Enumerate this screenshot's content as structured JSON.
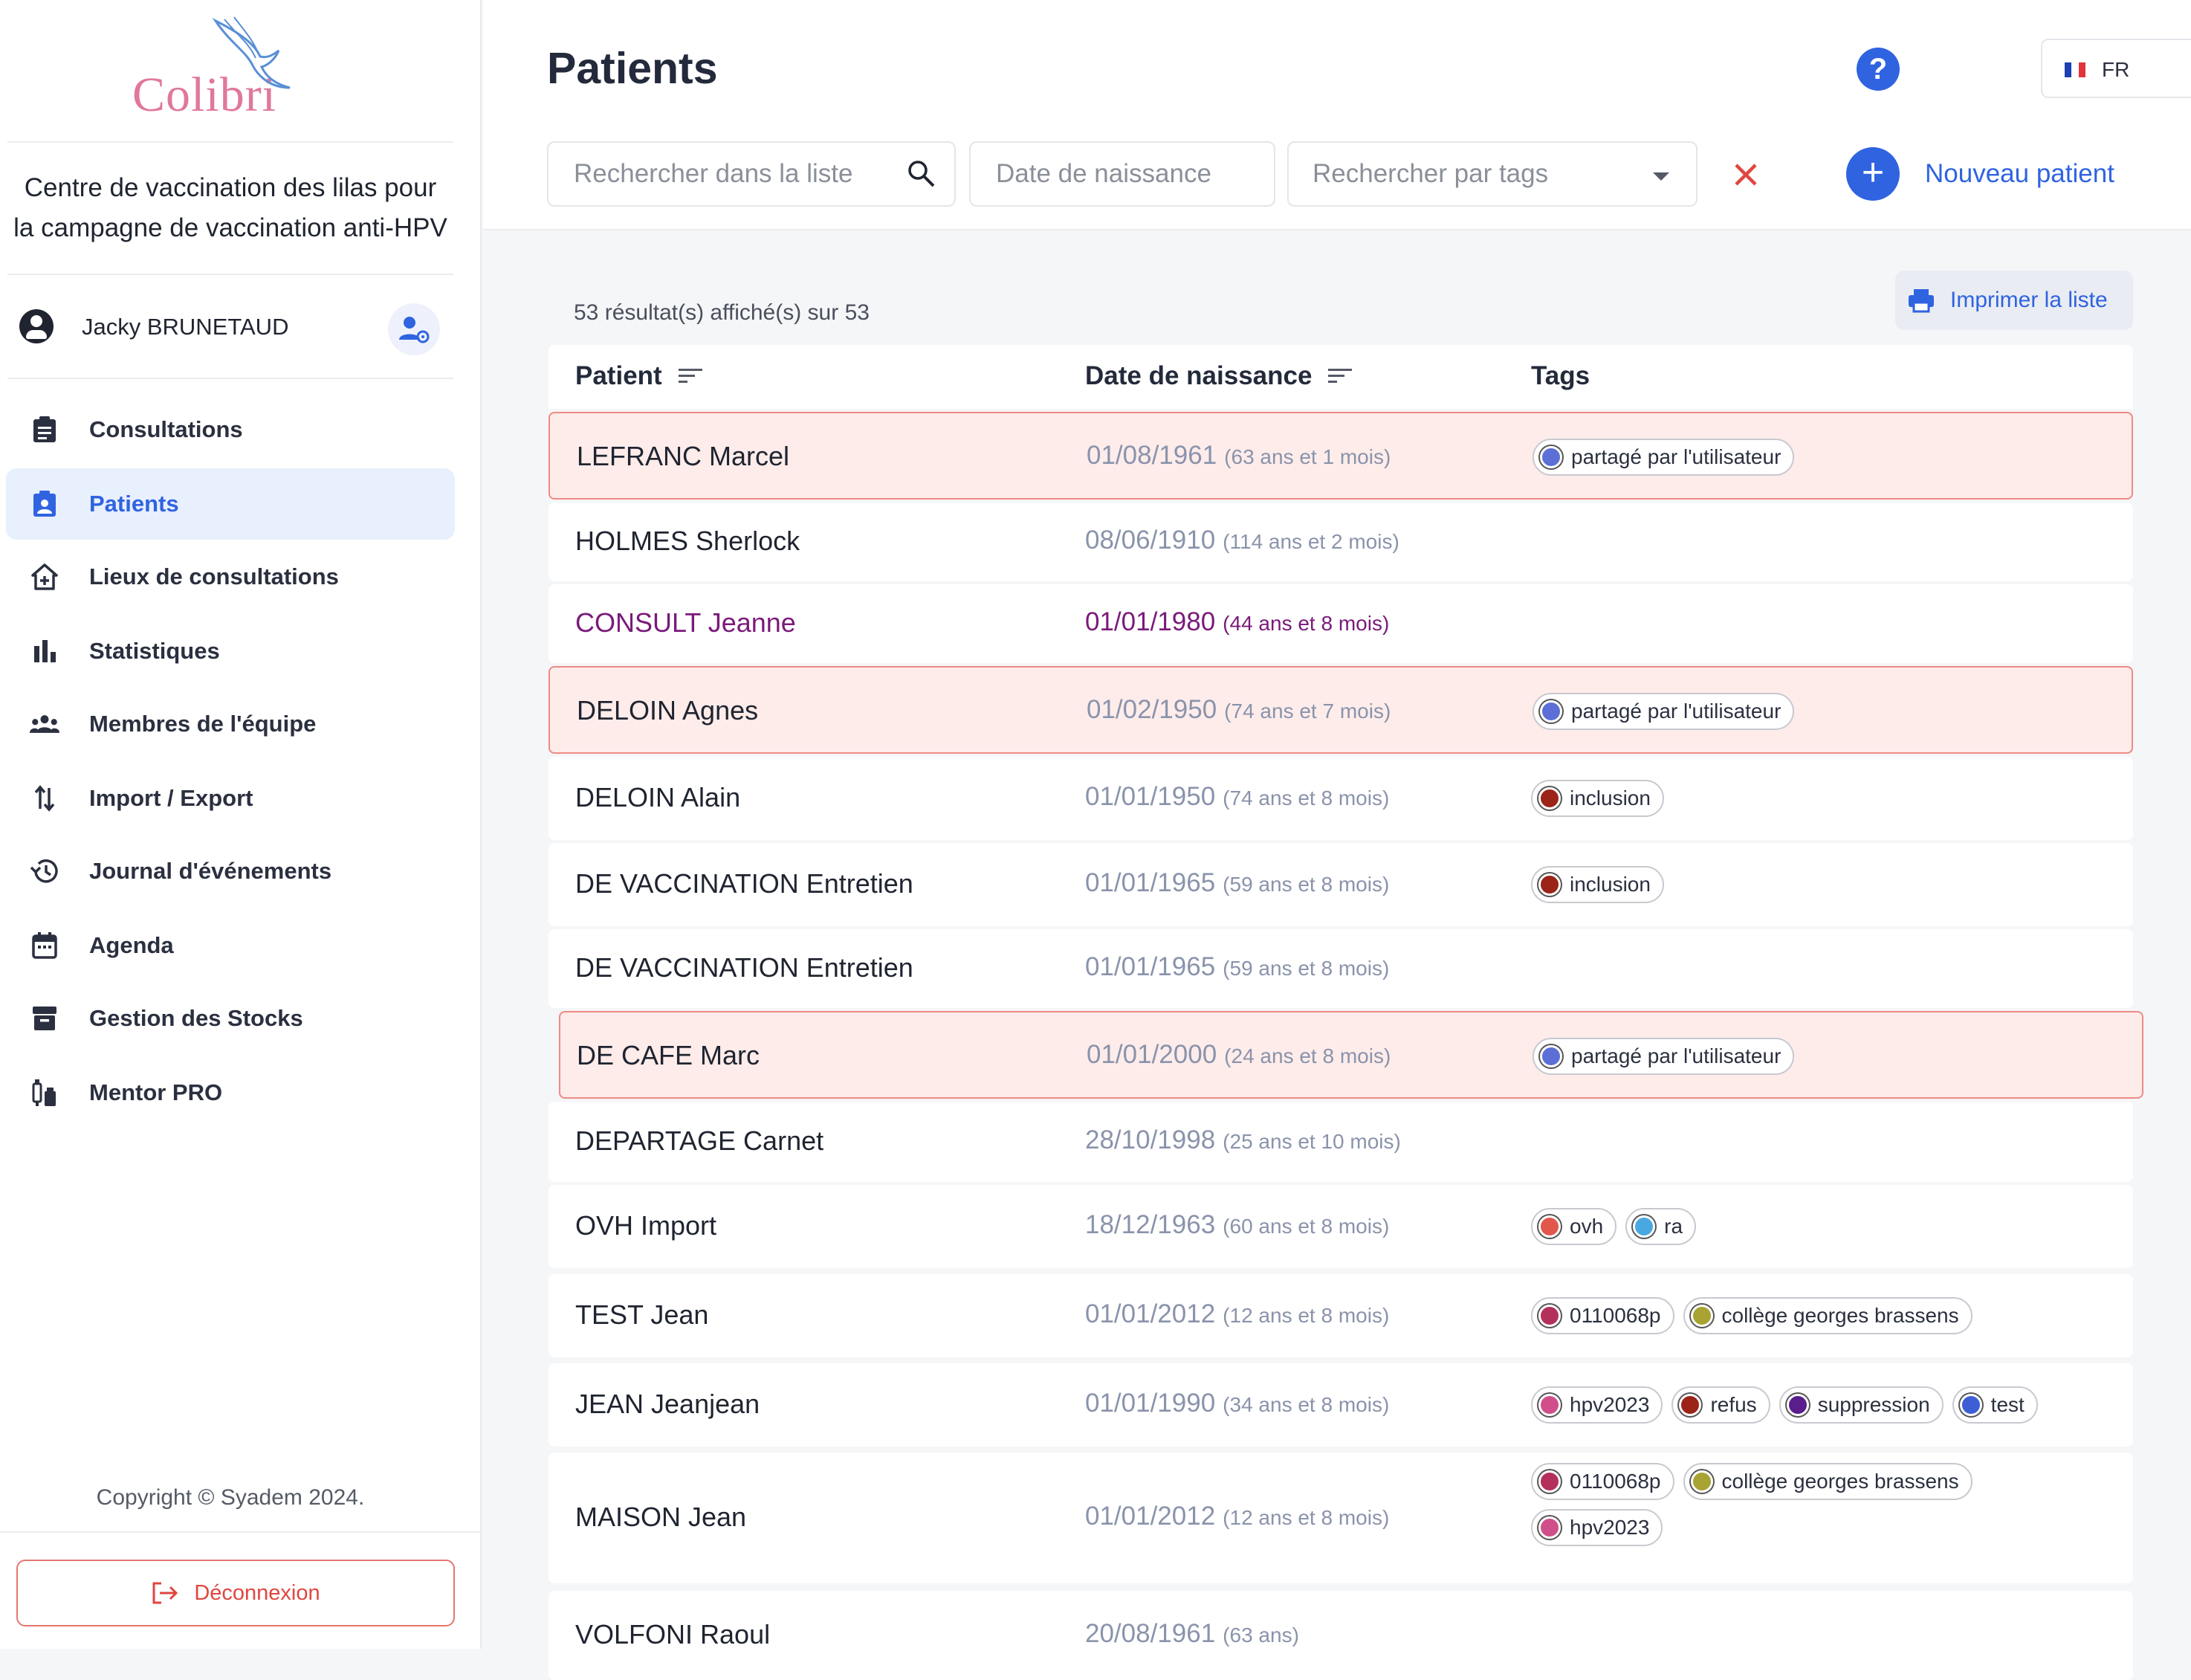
{
  "sidebar": {
    "logo_text": "Colibri",
    "center_name_line1": "Centre de vaccination des lilas pour",
    "center_name_line2": "la campagne de vaccination anti-HPV",
    "user_name": "Jacky BRUNETAUD",
    "nav": [
      {
        "label": "Consultations",
        "icon": "clipboard-icon",
        "active": false
      },
      {
        "label": "Patients",
        "icon": "patient-badge-icon",
        "active": true
      },
      {
        "label": "Lieux de consultations",
        "icon": "home-plus-icon",
        "active": false
      },
      {
        "label": "Statistiques",
        "icon": "bar-chart-icon",
        "active": false
      },
      {
        "label": "Membres de l'équipe",
        "icon": "group-icon",
        "active": false
      },
      {
        "label": "Import / Export",
        "icon": "swap-vertical-icon",
        "active": false
      },
      {
        "label": "Journal d'événements",
        "icon": "history-icon",
        "active": false
      },
      {
        "label": "Agenda",
        "icon": "calendar-icon",
        "active": false
      },
      {
        "label": "Gestion des Stocks",
        "icon": "archive-icon",
        "active": false
      },
      {
        "label": "Mentor PRO",
        "icon": "vaccine-icon",
        "active": false
      }
    ],
    "copyright": "Copyright © Syadem 2024.",
    "logout_label": "Déconnexion"
  },
  "header": {
    "title": "Patients",
    "help_label": "?",
    "language": "FR",
    "search_placeholder": "Rechercher dans la liste",
    "dob_placeholder": "Date de naissance",
    "tags_placeholder": "Rechercher par tags",
    "new_patient_label": "Nouveau patient"
  },
  "results": {
    "count_text": "53 résultat(s) affiché(s) sur 53",
    "print_label": "Imprimer la liste"
  },
  "table": {
    "columns": [
      "Patient",
      "Date de naissance",
      "Tags"
    ],
    "rows": [
      {
        "name": "LEFRANC Marcel",
        "dob": "01/08/1961",
        "age": "(63 ans et 1 mois)",
        "tags": [
          {
            "label": "partagé par l'utilisateur",
            "color": "#5b6fd6"
          }
        ],
        "highlight": true
      },
      {
        "name": "HOLMES Sherlock",
        "dob": "08/06/1910",
        "age": "(114 ans et 2 mois)",
        "tags": []
      },
      {
        "name": "CONSULT Jeanne",
        "dob": "01/01/1980",
        "age": "(44 ans et 8 mois)",
        "tags": [],
        "purple": true
      },
      {
        "name": "DELOIN Agnes",
        "dob": "01/02/1950",
        "age": "(74 ans et 7 mois)",
        "tags": [
          {
            "label": "partagé par l'utilisateur",
            "color": "#5b6fd6"
          }
        ],
        "highlight": true
      },
      {
        "name": "DELOIN Alain",
        "dob": "01/01/1950",
        "age": "(74 ans et 8 mois)",
        "tags": [
          {
            "label": "inclusion",
            "color": "#9b2318"
          }
        ],
        "ghost": true
      },
      {
        "name": "DE VACCINATION Entretien",
        "dob": "01/01/1965",
        "age": "(59 ans et 8 mois)",
        "tags": [
          {
            "label": "inclusion",
            "color": "#9b2318"
          }
        ],
        "ghost": true
      },
      {
        "name": "DE VACCINATION Entretien",
        "dob": "01/01/1965",
        "age": "(59 ans et 8 mois)",
        "tags": []
      },
      {
        "name": "DE CAFE Marc",
        "dob": "01/01/2000",
        "age": "(24 ans et 8 mois)",
        "tags": [
          {
            "label": "partagé par l'utilisateur",
            "color": "#5b6fd6"
          }
        ],
        "highlight": true
      },
      {
        "name": "DEPARTAGE Carnet",
        "dob": "28/10/1998",
        "age": "(25 ans et 10 mois)",
        "tags": []
      },
      {
        "name": "OVH Import",
        "dob": "18/12/1963",
        "age": "(60 ans et 8 mois)",
        "tags": [
          {
            "label": "ovh",
            "color": "#e2574c"
          },
          {
            "label": "ra",
            "color": "#4aa8e0"
          }
        ]
      },
      {
        "name": "TEST Jean",
        "dob": "01/01/2012",
        "age": "(12 ans et 8 mois)",
        "tags": [
          {
            "label": "0110068p",
            "color": "#b2305a"
          },
          {
            "label": "collège georges brassens",
            "color": "#a8a332"
          }
        ]
      },
      {
        "name": "JEAN Jeanjean",
        "dob": "01/01/1990",
        "age": "(34 ans et 8 mois)",
        "tags": [
          {
            "label": "hpv2023",
            "color": "#d04f8a"
          },
          {
            "label": "refus",
            "color": "#9b2318"
          },
          {
            "label": "suppression",
            "color": "#5a1d8c"
          },
          {
            "label": "test",
            "color": "#3d5fd6"
          }
        ]
      },
      {
        "name": "MAISON Jean",
        "dob": "01/01/2012",
        "age": "(12 ans et 8 mois)",
        "tags": [
          {
            "label": "0110068p",
            "color": "#b2305a"
          },
          {
            "label": "collège georges brassens",
            "color": "#a8a332"
          },
          {
            "label": "hpv2023",
            "color": "#d04f8a"
          }
        ]
      },
      {
        "name": "VOLFONI Raoul",
        "dob": "20/08/1961",
        "age": "(63 ans)",
        "tags": []
      }
    ]
  },
  "colors": {
    "accent": "#2f63e0",
    "danger": "#e0463f",
    "highlight_bg": "#fdecea"
  }
}
